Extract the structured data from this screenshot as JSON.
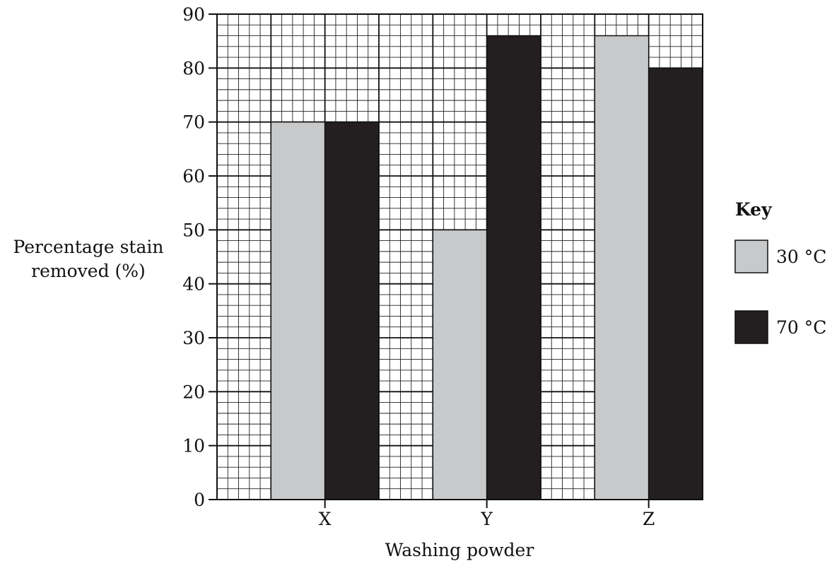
{
  "chart_data": {
    "type": "bar",
    "categories": [
      "X",
      "Y",
      "Z"
    ],
    "series": [
      {
        "name": "30 °C",
        "values": [
          70,
          50,
          86
        ],
        "color": "#c8c9cb"
      },
      {
        "name": "70 °C",
        "values": [
          70,
          86,
          80
        ],
        "color": "#231f20"
      }
    ],
    "xlabel": "Washing powder",
    "ylabel_lines": [
      "Percentage stain",
      "removed (%)"
    ],
    "ylim": [
      0,
      90
    ],
    "y_ticks": [
      0,
      10,
      20,
      30,
      40,
      50,
      60,
      70,
      80,
      90
    ],
    "grid": true,
    "legend": {
      "title": "Key",
      "placement": "right"
    }
  }
}
